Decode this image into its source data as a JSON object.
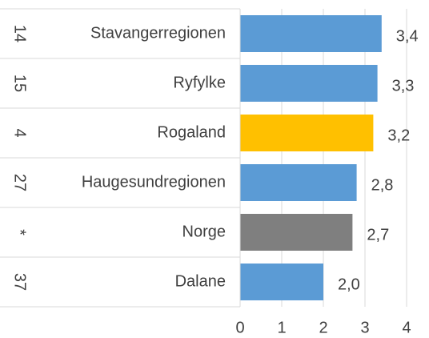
{
  "chart_data": {
    "type": "bar",
    "orientation": "horizontal",
    "categories": [
      "Stavangerregionen",
      "Ryfylke",
      "Rogaland",
      "Haugesundregionen",
      "Norge",
      "Dalane"
    ],
    "ranks": [
      "14",
      "15",
      "4",
      "27",
      "*",
      "37"
    ],
    "values": [
      3.4,
      3.3,
      3.2,
      2.8,
      2.7,
      2.0
    ],
    "value_labels": [
      "3,4",
      "3,3",
      "3,2",
      "2,8",
      "2,7",
      "2,0"
    ],
    "colors": [
      "#5b9bd5",
      "#5b9bd5",
      "#ffc000",
      "#5b9bd5",
      "#7f7f7f",
      "#5b9bd5"
    ],
    "xlim": [
      0,
      4
    ],
    "xticks": [
      0,
      1,
      2,
      3,
      4
    ],
    "grid": true
  }
}
